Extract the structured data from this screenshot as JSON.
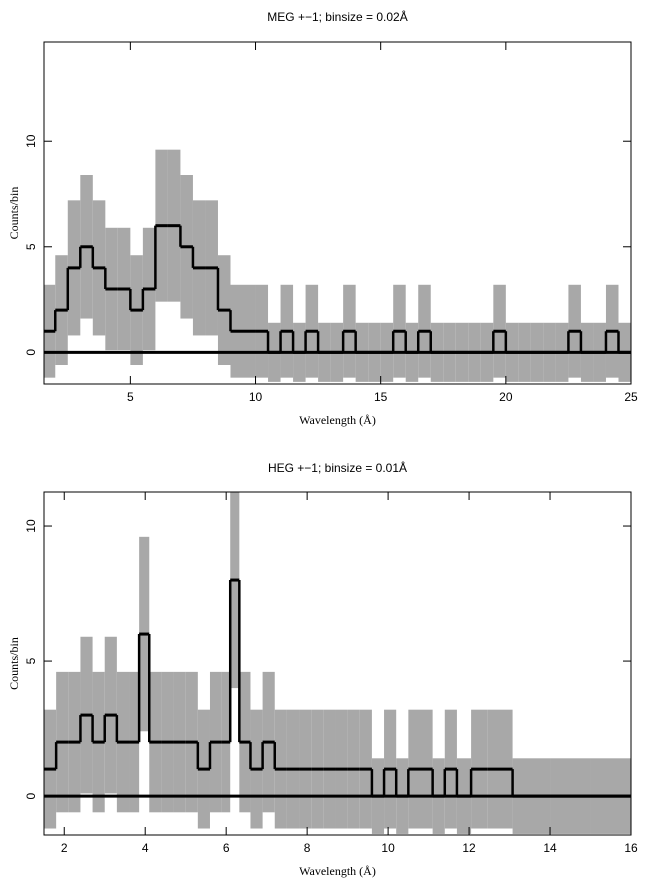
{
  "chart_data": [
    {
      "type": "step",
      "title": "MEG +−1; binsize = 0.02Å",
      "x_label": "Wavelength (Å)",
      "y_label": "Counts/bin",
      "x": [
        1.75,
        2.25,
        2.75,
        3.25,
        3.75,
        4.25,
        4.75,
        5.25,
        5.75,
        6.25,
        6.75,
        7.25,
        7.75,
        8.25,
        8.75,
        9.25,
        9.75,
        10.25,
        10.75,
        11.25,
        11.75,
        12.25,
        12.75,
        13.25,
        13.75,
        14.25,
        14.75,
        15.25,
        15.75,
        16.25,
        16.75,
        17.25,
        17.75,
        18.25,
        18.75,
        19.25,
        19.75,
        20.25,
        20.75,
        21.25,
        21.75,
        22.25,
        22.75,
        23.25,
        23.75,
        24.25,
        24.75
      ],
      "values": [
        1,
        2,
        4,
        5,
        4,
        3,
        3,
        2,
        3,
        6,
        6,
        5,
        4,
        4,
        2,
        1,
        1,
        1,
        0,
        1,
        0,
        1,
        0,
        0,
        1,
        0,
        0,
        0,
        1,
        0,
        1,
        0,
        0,
        0,
        0,
        0,
        1,
        0,
        0,
        0,
        0,
        0,
        1,
        0,
        0,
        1,
        0
      ],
      "errors": [
        2.2,
        2.6,
        3.2,
        3.4,
        3.2,
        2.9,
        2.9,
        2.6,
        2.9,
        3.6,
        3.6,
        3.4,
        3.2,
        3.2,
        2.6,
        2.2,
        2.2,
        2.2,
        1.4,
        2.2,
        1.4,
        2.2,
        1.4,
        1.4,
        2.2,
        1.4,
        1.4,
        1.4,
        2.2,
        1.4,
        2.2,
        1.4,
        1.4,
        1.4,
        1.4,
        1.4,
        2.2,
        1.4,
        1.4,
        1.4,
        1.4,
        1.4,
        2.2,
        1.4,
        1.4,
        2.2,
        1.4
      ],
      "color": "#000000",
      "error_color": "#a8a8a8",
      "xlim": [
        1.55,
        25
      ],
      "xticks": [
        5,
        10,
        15,
        20,
        25
      ],
      "ylim": [
        -1.5,
        14.7
      ],
      "yticks": [
        0,
        5,
        10
      ]
    },
    {
      "type": "step",
      "title": "HEG +−1; binsize = 0.01Å",
      "x_label": "Wavelength (Å)",
      "y_label": "Counts/bin",
      "x": [
        1.65,
        1.95,
        2.25,
        2.55,
        2.85,
        3.15,
        3.45,
        3.75,
        3.95,
        4.25,
        4.55,
        4.85,
        5.15,
        5.45,
        5.75,
        6.0,
        6.2,
        6.45,
        6.75,
        7.05,
        7.35,
        7.65,
        7.95,
        8.25,
        8.55,
        8.85,
        9.15,
        9.45,
        9.75,
        10.05,
        10.35,
        10.65,
        10.95,
        11.25,
        11.55,
        11.85,
        12.25,
        12.65,
        13.5,
        14.5,
        15.5
      ],
      "values": [
        1,
        2,
        2,
        3,
        2,
        3,
        2,
        2,
        6,
        2,
        2,
        2,
        2,
        1,
        2,
        2,
        8,
        2,
        1,
        2,
        1,
        1,
        1,
        1,
        1,
        1,
        1,
        1,
        0,
        1,
        0,
        1,
        1,
        0,
        1,
        0,
        1,
        1,
        0,
        0,
        0
      ],
      "errors": [
        2.2,
        2.6,
        2.6,
        2.9,
        2.6,
        2.9,
        2.6,
        2.6,
        3.6,
        2.6,
        2.6,
        2.6,
        2.6,
        2.2,
        2.6,
        2.6,
        4,
        2.6,
        2.2,
        2.6,
        2.2,
        2.2,
        2.2,
        2.2,
        2.2,
        2.2,
        2.2,
        2.2,
        1.4,
        2.2,
        1.4,
        2.2,
        2.2,
        1.4,
        2.2,
        1.4,
        2.2,
        2.2,
        1.4,
        1.4,
        1.4
      ],
      "color": "#000000",
      "error_color": "#a8a8a8",
      "xlim": [
        1.5,
        16
      ],
      "xticks": [
        2,
        4,
        6,
        8,
        10,
        12,
        14,
        16
      ],
      "ylim": [
        -1.44,
        11.26
      ],
      "yticks": [
        0,
        5,
        10
      ]
    }
  ]
}
